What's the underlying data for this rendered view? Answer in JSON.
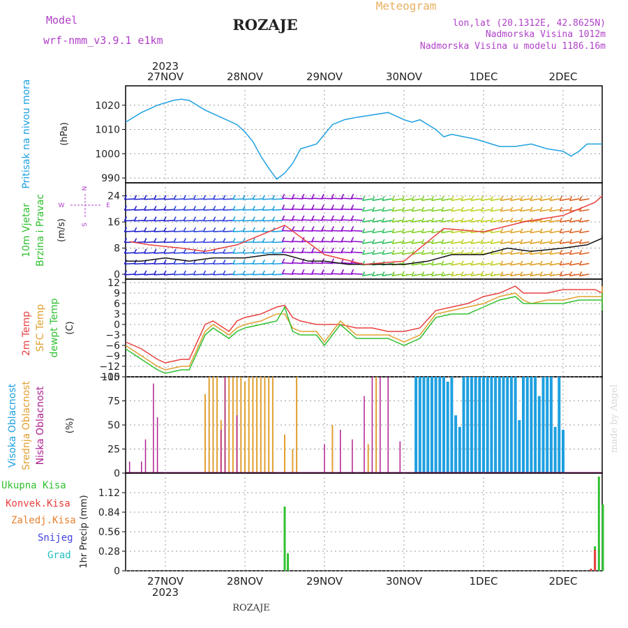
{
  "header": {
    "model_label": "Model",
    "model_name": "wrf-nmm_v3.9.1 e1km",
    "title": "ROZAJE",
    "meteogram": "Meteogram",
    "lonlat": "lon,lat (20.1312E, 42.8625N)",
    "elevation": "Nadmorska Visina 1012m",
    "model_elevation": "Nadmorska Visina u modelu 1186.16m",
    "footer_station": "ROZAJE",
    "credit": "made by Angel"
  },
  "time_axis": {
    "year": "2023",
    "days": [
      "27NOV",
      "28NOV",
      "29NOV",
      "30NOV",
      "1DEC",
      "2DEC"
    ]
  },
  "colors": {
    "pressure": "#1ea0e0",
    "temp2m": "#e84040",
    "sfc": "#e0a030",
    "dewpt": "#30c030",
    "high_cloud": "#1ea0e0",
    "mid_cloud": "#e0a030",
    "low_cloud": "#b02090",
    "precip_total": "#30c030",
    "precip_conv": "#e84040"
  },
  "chart_data": [
    {
      "type": "line",
      "panel": "pressure",
      "ylabel_main": "Pritisak na nivou mora",
      "ylabel_unit": "(hPa)",
      "ylim": [
        988,
        1028
      ],
      "yticks": [
        990,
        1000,
        1010,
        1020
      ],
      "series": [
        {
          "x": [
            -0.5,
            -0.3,
            -0.1,
            0.1,
            0.2,
            0.3,
            0.5,
            0.7,
            0.9,
            1.0,
            1.1,
            1.2,
            1.3,
            1.4,
            1.5,
            1.6,
            1.7,
            1.9,
            2.0,
            2.1,
            2.25,
            2.4,
            2.6,
            2.8,
            3.0,
            3.1,
            3.2,
            3.3,
            3.4,
            3.5,
            3.6,
            3.75,
            3.9,
            4.0,
            4.1,
            4.2,
            4.4,
            4.6,
            4.8,
            5.0,
            5.1,
            5.2,
            5.3,
            5.45,
            5.55,
            5.6,
            5.7
          ],
          "y": [
            1013,
            1017,
            1020,
            1022,
            1022.5,
            1022,
            1018,
            1015,
            1012,
            1009,
            1005,
            999,
            994,
            989.5,
            992,
            996,
            1002,
            1004,
            1008,
            1012,
            1014,
            1015,
            1016,
            1017,
            1014,
            1013,
            1014,
            1012,
            1010,
            1007,
            1008,
            1007,
            1006,
            1005,
            1004,
            1003,
            1003,
            1004,
            1002,
            1001,
            999,
            1001,
            1004,
            1004,
            1004,
            1004,
            1004
          ]
        }
      ]
    },
    {
      "type": "barbs",
      "panel": "wind",
      "ylabel_main": "10m Vjetar",
      "ylabel_sub": "Brzina i Pravac",
      "ylabel_unit": "(m/s)",
      "compass": [
        "N",
        "E",
        "S",
        "W"
      ],
      "ylim": [
        -1.5,
        28
      ],
      "yticks": [
        0,
        8,
        16,
        24
      ],
      "series": [
        {
          "name": "brzina",
          "x": [
            -0.5,
            -0.3,
            0,
            0.3,
            0.6,
            1.0,
            1.3,
            1.5,
            1.8,
            2.0,
            2.3,
            2.6,
            3.0,
            3.3,
            3.6,
            4.0,
            4.3,
            4.6,
            5.0,
            5.3,
            5.6,
            5.7
          ],
          "y": [
            4,
            4,
            5,
            4,
            5,
            5,
            6,
            6,
            4,
            4,
            3,
            3,
            3,
            4,
            6,
            6,
            8,
            7,
            8,
            9,
            11,
            12
          ]
        },
        {
          "name": "udari",
          "x": [
            -0.45,
            -0.2,
            0.2,
            0.5,
            0.9,
            1.2,
            1.5,
            2.0,
            2.5,
            3.0,
            3.5,
            4.0,
            4.5,
            5.0,
            5.4,
            5.6
          ],
          "y": [
            10,
            9,
            8,
            7,
            9,
            12,
            15,
            6,
            3,
            4,
            14,
            13,
            16,
            18,
            22,
            24
          ]
        }
      ]
    },
    {
      "type": "line",
      "panel": "temperature",
      "ylabels": [
        "2m Temp",
        "SFC Temp",
        "dewpt Temp"
      ],
      "ylabel_unit": "(C)",
      "ylim": [
        -15,
        13
      ],
      "yticks": [
        12,
        9,
        6,
        3,
        0,
        -3,
        -6,
        -9,
        -12,
        -15
      ],
      "series": [
        {
          "name": "2m Temp",
          "x": [
            -0.5,
            -0.3,
            -0.1,
            0.0,
            0.2,
            0.3,
            0.5,
            0.6,
            0.8,
            0.9,
            1.0,
            1.2,
            1.4,
            1.5,
            1.6,
            1.7,
            1.9,
            2.0,
            2.2,
            2.4,
            2.6,
            2.8,
            3.0,
            3.2,
            3.4,
            3.6,
            3.8,
            4.0,
            4.2,
            4.4,
            4.5,
            4.6,
            4.8,
            5.0,
            5.2,
            5.4,
            5.5,
            5.6,
            5.7
          ],
          "y": [
            -5,
            -7,
            -10,
            -11,
            -10,
            -10,
            0,
            1,
            -2,
            1,
            2,
            3,
            5,
            5.5,
            2,
            1,
            0,
            0,
            0,
            -1,
            -1,
            -2,
            -2,
            -1,
            4,
            5,
            6,
            8,
            9,
            11,
            9,
            9,
            9,
            10,
            10,
            10,
            9,
            11,
            8
          ]
        },
        {
          "name": "SFC Temp",
          "x": [
            -0.5,
            -0.3,
            -0.1,
            0.0,
            0.2,
            0.3,
            0.5,
            0.6,
            0.8,
            0.9,
            1.0,
            1.2,
            1.4,
            1.5,
            1.6,
            1.7,
            1.9,
            2.0,
            2.2,
            2.4,
            2.6,
            2.8,
            3.0,
            3.2,
            3.4,
            3.6,
            3.8,
            4.0,
            4.2,
            4.4,
            4.5,
            4.6,
            4.8,
            5.0,
            5.2,
            5.4,
            5.5,
            5.6,
            5.7
          ],
          "y": [
            -6,
            -9,
            -12,
            -13,
            -12,
            -12,
            -2,
            0,
            -3,
            -1,
            0,
            1,
            3,
            3,
            -1,
            -2,
            -2,
            -5,
            1,
            -3,
            -3,
            -3,
            -5,
            -3,
            3,
            4,
            5,
            6,
            8,
            9,
            7,
            6,
            7,
            7,
            8,
            8,
            8,
            11,
            6
          ]
        },
        {
          "name": "dewpt Temp",
          "x": [
            -0.5,
            -0.3,
            -0.1,
            0.0,
            0.2,
            0.3,
            0.5,
            0.6,
            0.8,
            0.9,
            1.0,
            1.2,
            1.4,
            1.5,
            1.6,
            1.7,
            1.9,
            2.0,
            2.2,
            2.4,
            2.6,
            2.8,
            3.0,
            3.2,
            3.4,
            3.6,
            3.8,
            4.0,
            4.2,
            4.4,
            4.5,
            4.6,
            4.8,
            5.0,
            5.2,
            5.4,
            5.5,
            5.6,
            5.7
          ],
          "y": [
            -7,
            -10,
            -13,
            -14,
            -13,
            -13,
            -3,
            -1,
            -4,
            -2,
            -1,
            0,
            1,
            5,
            -2,
            -3,
            -3,
            -6,
            0,
            -4,
            -4,
            -4,
            -6,
            -4,
            2,
            3,
            3,
            5,
            7,
            8,
            6,
            6,
            6,
            6,
            7,
            7,
            7,
            9,
            4
          ]
        }
      ]
    },
    {
      "type": "bar",
      "panel": "clouds",
      "ylabels": [
        "Visoka Oblacnost",
        "Srednja Oblacnost",
        "Niska Oblacnost"
      ],
      "ylabel_unit": "(%)",
      "ylim": [
        0,
        100
      ],
      "yticks": [
        0,
        25,
        50,
        75,
        100
      ],
      "series": [
        {
          "name": "Visoka Oblacnost",
          "x": [
            3.15,
            3.2,
            3.25,
            3.3,
            3.35,
            3.4,
            3.45,
            3.5,
            3.55,
            3.6,
            3.65,
            3.7,
            3.75,
            3.8,
            3.85,
            3.9,
            3.95,
            4.0,
            4.05,
            4.1,
            4.15,
            4.2,
            4.25,
            4.3,
            4.35,
            4.4,
            4.45,
            4.5,
            4.55,
            4.6,
            4.65,
            4.7,
            4.75,
            4.8,
            4.85,
            4.9,
            4.95,
            5.0
          ],
          "y": [
            100,
            100,
            100,
            100,
            100,
            100,
            100,
            100,
            95,
            100,
            60,
            48,
            100,
            100,
            100,
            100,
            100,
            100,
            100,
            100,
            100,
            100,
            100,
            100,
            100,
            100,
            55,
            100,
            100,
            100,
            100,
            80,
            100,
            100,
            100,
            48,
            100,
            45
          ]
        },
        {
          "name": "Srednja Oblacnost",
          "x": [
            0.5,
            0.55,
            0.6,
            0.65,
            0.7,
            0.75,
            0.8,
            0.85,
            0.9,
            0.95,
            1.0,
            1.05,
            1.1,
            1.15,
            1.2,
            1.25,
            1.3,
            1.35,
            1.5,
            1.6,
            1.65,
            2.1,
            2.55,
            2.65,
            5.55,
            5.6,
            5.65
          ],
          "y": [
            82,
            100,
            100,
            100,
            55,
            100,
            100,
            100,
            100,
            100,
            95,
            100,
            100,
            100,
            100,
            100,
            100,
            100,
            40,
            25,
            100,
            50,
            30,
            100,
            52,
            100,
            100
          ]
        },
        {
          "name": "Niska Oblacnost",
          "x": [
            -0.45,
            -0.3,
            -0.25,
            -0.15,
            -0.1,
            0.7,
            0.75,
            0.9,
            2.0,
            2.2,
            2.35,
            2.5,
            2.6,
            2.7,
            2.8,
            2.95
          ],
          "y": [
            12,
            12,
            35,
            93,
            58,
            45,
            100,
            60,
            30,
            45,
            35,
            80,
            100,
            100,
            100,
            33
          ]
        }
      ]
    },
    {
      "type": "bar",
      "panel": "precip",
      "ylabels": [
        "Ukupna Kisa",
        "Konvek.Kisa",
        "Zaledj.Kisa",
        "Snijeg",
        "Grad"
      ],
      "ylabel_unit": "1hr Precip (mm)",
      "ylim": [
        0,
        1.4
      ],
      "yticks": [
        0,
        0.28,
        0.56,
        0.84,
        1.12
      ],
      "series": [
        {
          "name": "Ukupna Kisa",
          "x": [
            1.5,
            1.54,
            5.35,
            5.4,
            5.45,
            5.5
          ],
          "y": [
            0.92,
            0.25,
            0.03,
            0.35,
            1.35,
            0.95
          ]
        },
        {
          "name": "Konvek.Kisa",
          "x": [
            5.35,
            5.4
          ],
          "y": [
            0.03,
            0.3
          ]
        }
      ]
    }
  ]
}
